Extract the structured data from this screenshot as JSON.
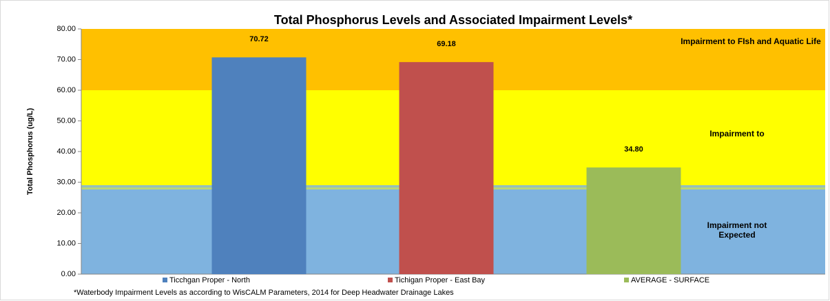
{
  "chart_data": {
    "type": "bar",
    "title": "Total Phosphorus Levels and Associated Impairment Levels*",
    "y_label": "Total Phosphorus (ug/L)",
    "categories": [
      "Ticchgan Proper - North",
      "Tichigan Proper - East Bay",
      "AVERAGE - SURFACE"
    ],
    "values": [
      70.72,
      69.18,
      34.8
    ],
    "value_labels": [
      "70.72",
      "69.18",
      "34.80"
    ],
    "colors": [
      "#4f81bd",
      "#c0504d",
      "#9bbb59"
    ],
    "ylim": [
      0,
      80
    ],
    "yticks": [
      {
        "value": 0,
        "label": "0.00"
      },
      {
        "value": 10,
        "label": "10.00"
      },
      {
        "value": 20,
        "label": "20.00"
      },
      {
        "value": 30,
        "label": "30.00"
      },
      {
        "value": 40,
        "label": "40.00"
      },
      {
        "value": 50,
        "label": "50.00"
      },
      {
        "value": 60,
        "label": "60.00"
      },
      {
        "value": 70,
        "label": "70.00"
      },
      {
        "value": 80,
        "label": "80.00"
      }
    ],
    "bands": [
      {
        "from": 0,
        "to": 29,
        "color": "#7fb3df",
        "label": "Impairment not Expected"
      },
      {
        "from": 29,
        "to": 60,
        "color": "#ffff00",
        "label": "Impairment to"
      },
      {
        "from": 60,
        "to": 80,
        "color": "#ffc000",
        "label": "Impairment to FIsh and Aquatic Life"
      }
    ],
    "footnote": "*Waterbody Impairment Levels as according to WisCALM Parameters, 2014 for Deep Headwater Drainage Lakes"
  }
}
